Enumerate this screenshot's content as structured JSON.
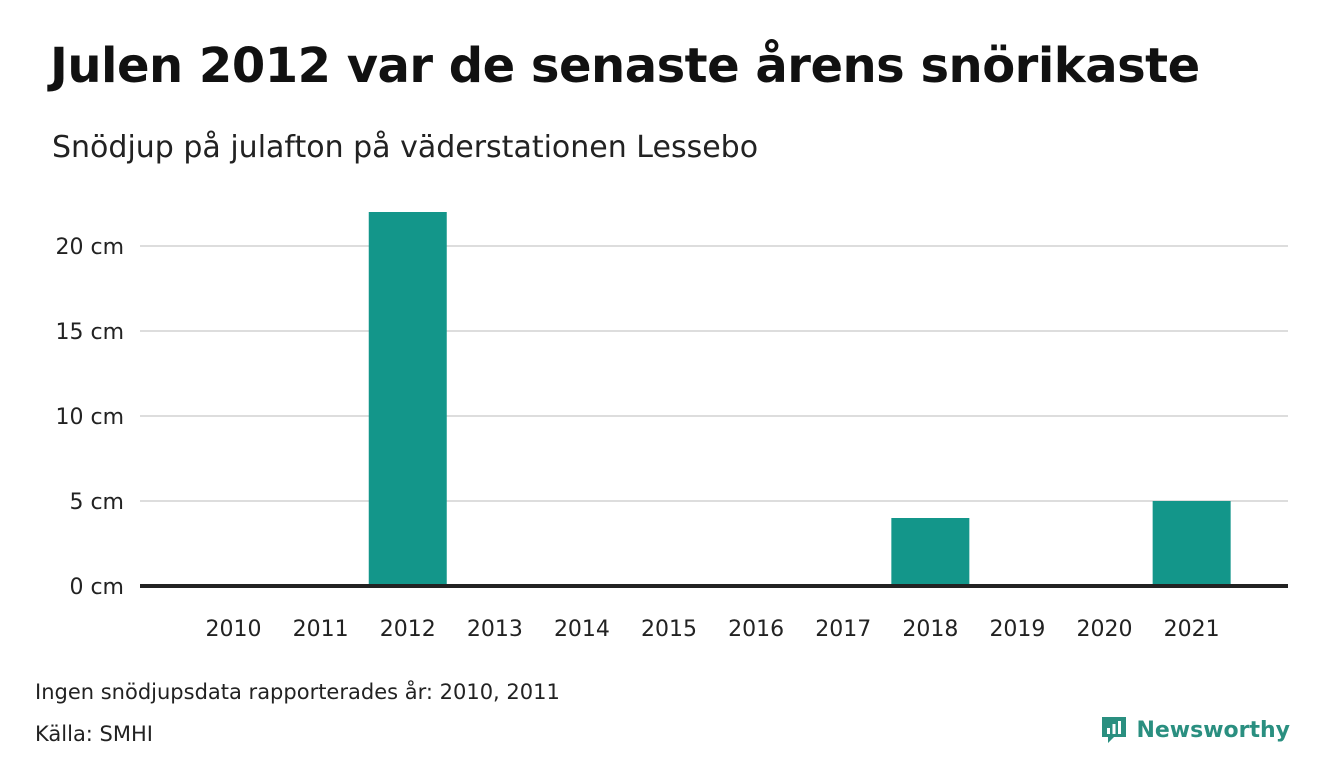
{
  "header": {
    "title": "Julen 2012 var de senaste årens snörikaste",
    "subtitle": "Snödjup på julafton på väderstationen Lessebo"
  },
  "footer": {
    "note": "Ingen snödjupsdata rapporterades år: 2010, 2011",
    "source": "Källa: SMHI",
    "brand": "Newsworthy",
    "brand_icon": "newsworthy-logo-icon"
  },
  "colors": {
    "bar": "#13968a",
    "grid": "#dddddd",
    "baseline": "#222222",
    "brand": "#2a8f80"
  },
  "chart_data": {
    "type": "bar",
    "categories": [
      "2010",
      "2011",
      "2012",
      "2013",
      "2014",
      "2015",
      "2016",
      "2017",
      "2018",
      "2019",
      "2020",
      "2021"
    ],
    "values": [
      null,
      null,
      22,
      0,
      0,
      0,
      0,
      0,
      4,
      0,
      0,
      5
    ],
    "yticks": [
      0,
      5,
      10,
      15,
      20
    ],
    "ytick_labels": [
      "0 cm",
      "5 cm",
      "10 cm",
      "15 cm",
      "20 cm"
    ],
    "ylim": [
      0,
      22
    ],
    "grid": true,
    "legend": "none"
  }
}
